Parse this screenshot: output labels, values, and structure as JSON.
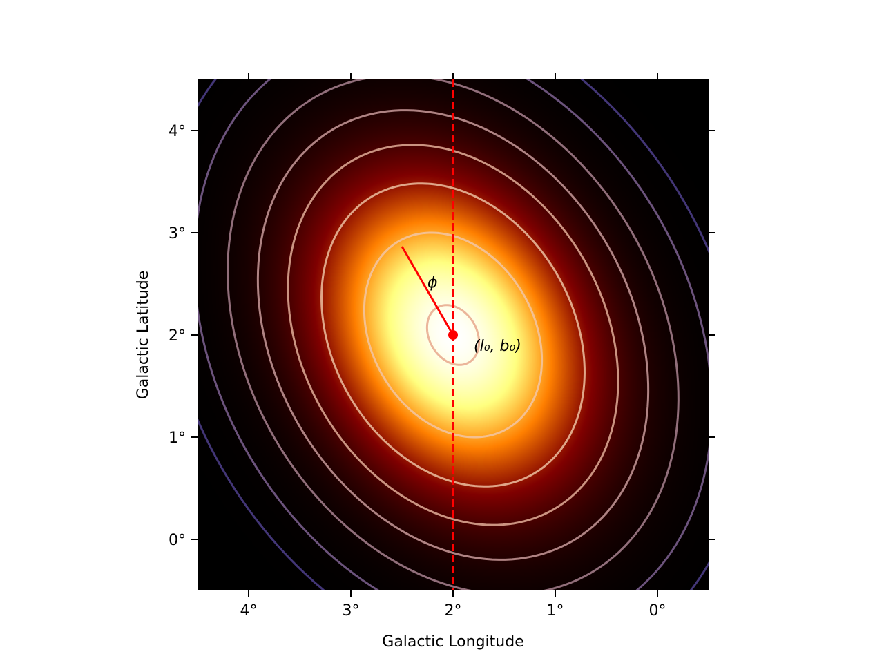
{
  "chart_data": {
    "type": "heatmap",
    "description_kind": "elliptical gaussian intensity map with contours",
    "xlabel": "Galactic Longitude",
    "ylabel": "Galactic Latitude",
    "xlim": [
      4.5,
      -0.5
    ],
    "ylim": [
      -0.5,
      4.5
    ],
    "x_ticks": [
      4,
      3,
      2,
      1,
      0
    ],
    "y_ticks": [
      0,
      1,
      2,
      3,
      4
    ],
    "x_tick_labels": [
      "4°",
      "3°",
      "2°",
      "1°",
      "0°"
    ],
    "y_tick_labels": [
      "0°",
      "1°",
      "2°",
      "3°",
      "4°"
    ],
    "grid": false,
    "colormap": "afmhot",
    "center": {
      "l": 2.0,
      "b": 2.0,
      "label": "(l₀, b₀)"
    },
    "model": {
      "sigma_major_deg": 1.0,
      "sigma_minor_deg": 0.75,
      "phi_deg": 30,
      "phi_label": "ϕ"
    },
    "contour_levels_sigma": [
      0.31,
      1.06,
      1.57,
      1.97,
      2.33,
      2.69,
      3.09,
      3.48
    ],
    "contour_colors": [
      "#e8a88c",
      "#f2c6a4",
      "#ecc0a0",
      "#e2ad98",
      "#c89a9a",
      "#a9818f",
      "#7f6192",
      "#4f3f8c"
    ],
    "reference_line": {
      "type": "vertical",
      "x": 2.0,
      "color": "#ff0000",
      "style": "dashed"
    },
    "marker_color": "#ff0000"
  }
}
